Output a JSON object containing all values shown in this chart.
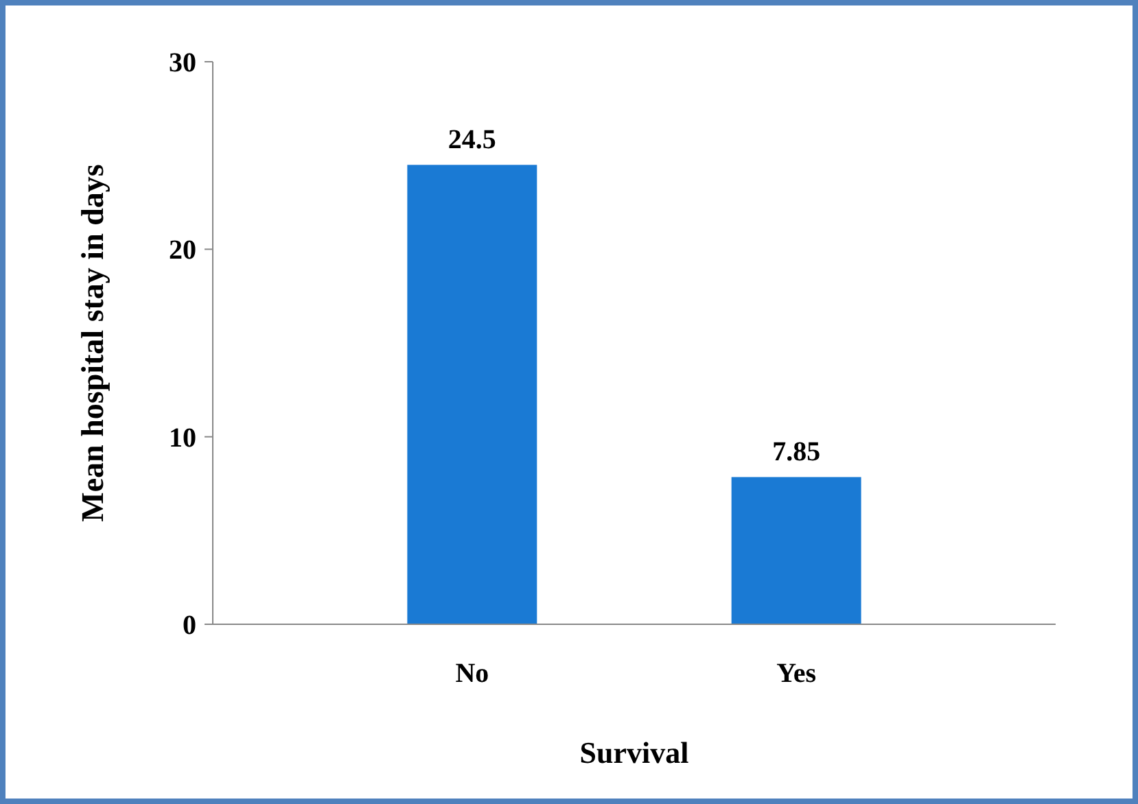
{
  "chart_data": {
    "type": "bar",
    "xlabel": "Survival",
    "ylabel": "Mean hospital stay in days",
    "categories": [
      "No",
      "Yes"
    ],
    "values": [
      24.5,
      7.85
    ],
    "color": "#1a7ad4",
    "ylim": [
      0,
      30
    ],
    "yticks": [
      0,
      10,
      20,
      30
    ],
    "data_labels": true,
    "grid": false
  }
}
